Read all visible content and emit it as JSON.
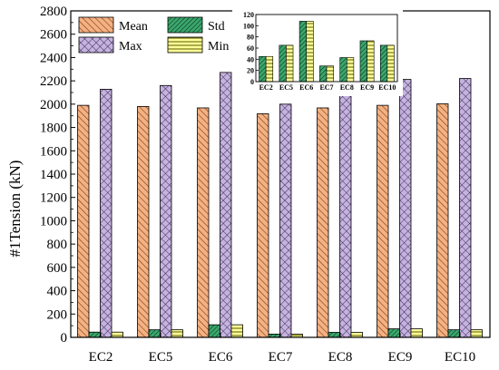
{
  "chart_data": [
    {
      "type": "bar",
      "ylabel": "#1Tension (kN)",
      "ylim": [
        0,
        2800
      ],
      "yticks": [
        0,
        200,
        400,
        600,
        800,
        1000,
        1200,
        1400,
        1600,
        1800,
        2000,
        2200,
        2400,
        2600,
        2800
      ],
      "categories": [
        "EC2",
        "EC5",
        "EC6",
        "EC7",
        "EC8",
        "EC9",
        "EC10"
      ],
      "legend_position": "top-left",
      "series": [
        {
          "name": "Mean",
          "values": [
            1990,
            1980,
            1968,
            1918,
            1968,
            1990,
            2003
          ],
          "color": "#f4b183",
          "pattern": "diagonal"
        },
        {
          "name": "Std",
          "values": [
            45,
            65,
            108,
            28,
            43,
            73,
            65
          ],
          "color": "#3ba86e",
          "pattern": "diagonal-dense"
        },
        {
          "name": "Max",
          "values": [
            2128,
            2160,
            2272,
            2000,
            2088,
            2212,
            2220
          ],
          "color": "#c5b3de",
          "pattern": "crosshatch"
        },
        {
          "name": "Min",
          "values": [
            45,
            65,
            108,
            28,
            43,
            73,
            65
          ],
          "color": "#ffff99",
          "pattern": "horizontal"
        }
      ]
    },
    {
      "type": "bar",
      "position": "inset-top-right",
      "ylim": [
        0,
        120
      ],
      "yticks": [
        0,
        20,
        40,
        60,
        80,
        100,
        120
      ],
      "categories": [
        "EC2",
        "EC5",
        "EC6",
        "EC7",
        "EC8",
        "EC9",
        "EC10"
      ],
      "series": [
        {
          "name": "Std",
          "values": [
            45,
            65,
            108,
            28,
            43,
            73,
            65
          ],
          "color": "#3ba86e",
          "pattern": "diagonal-dense"
        },
        {
          "name": "Min",
          "values": [
            45,
            65,
            108,
            28,
            43,
            73,
            65
          ],
          "color": "#ffff99",
          "pattern": "horizontal"
        }
      ]
    }
  ]
}
